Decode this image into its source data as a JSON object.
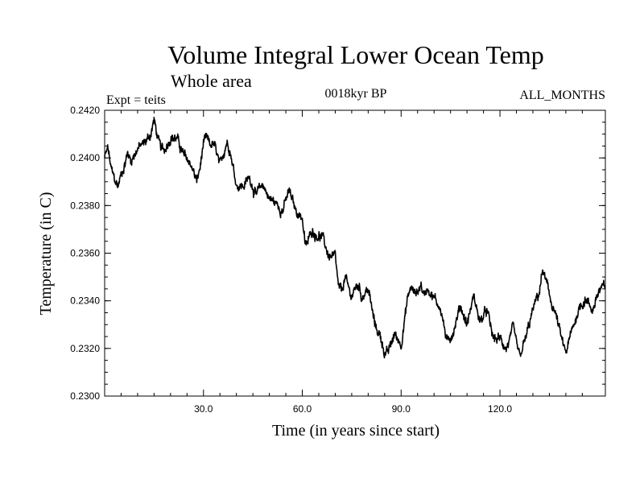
{
  "chart_data": {
    "type": "line",
    "title": "Volume Integral Lower Ocean Temp",
    "subtitle": "Whole area",
    "center_label": "0018kyr BP",
    "right_label": "ALL_MONTHS",
    "left_label": "Expt = teits",
    "xlabel": "Time (in years since start)",
    "ylabel": "Temperature (in C)",
    "xlim": [
      0,
      152
    ],
    "ylim": [
      0.23,
      0.242
    ],
    "xticks": [
      30,
      60,
      90,
      120
    ],
    "xtick_labels": [
      "30.0",
      "60.0",
      "90.0",
      "120.0"
    ],
    "yticks": [
      0.23,
      0.232,
      0.234,
      0.236,
      0.238,
      0.24,
      0.242
    ],
    "ytick_labels": [
      "0.2300",
      "0.2320",
      "0.2340",
      "0.2360",
      "0.2380",
      "0.2400",
      "0.2420"
    ],
    "grid": false,
    "series": [
      {
        "name": "teits",
        "color": "#000000",
        "x": [
          0,
          1,
          2,
          3,
          4,
          5,
          6,
          7,
          8,
          10,
          12,
          14,
          15,
          16,
          17,
          18,
          20,
          22,
          24,
          26,
          28,
          29,
          30,
          31,
          32,
          33,
          34,
          35,
          37,
          38,
          40,
          42,
          44,
          46,
          48,
          50,
          52,
          54,
          56,
          58,
          60,
          61,
          62,
          63,
          64,
          66,
          68,
          70,
          71,
          72,
          73,
          74,
          75,
          76,
          77,
          78,
          80,
          82,
          84,
          85,
          86,
          88,
          90,
          92,
          93,
          94,
          95,
          96,
          97,
          98,
          100,
          102,
          104,
          106,
          108,
          110,
          112,
          114,
          116,
          118,
          120,
          122,
          124,
          126,
          128,
          130,
          132,
          133,
          134,
          135,
          136,
          137,
          138,
          139,
          140,
          142,
          144,
          146,
          148,
          150,
          152
        ],
        "y": [
          0.24,
          0.2404,
          0.2395,
          0.2391,
          0.2388,
          0.2393,
          0.2397,
          0.2402,
          0.2399,
          0.2404,
          0.2406,
          0.241,
          0.2416,
          0.2409,
          0.2404,
          0.2403,
          0.2409,
          0.2408,
          0.2401,
          0.2398,
          0.239,
          0.2396,
          0.2406,
          0.2408,
          0.2405,
          0.2406,
          0.2402,
          0.2396,
          0.2407,
          0.2404,
          0.2389,
          0.2388,
          0.2392,
          0.2384,
          0.2389,
          0.2383,
          0.2381,
          0.2378,
          0.2386,
          0.2378,
          0.2375,
          0.2362,
          0.2366,
          0.237,
          0.2368,
          0.2367,
          0.2359,
          0.2358,
          0.2345,
          0.2344,
          0.235,
          0.2345,
          0.2342,
          0.2345,
          0.2347,
          0.2342,
          0.2345,
          0.233,
          0.2324,
          0.2318,
          0.2318,
          0.2326,
          0.2322,
          0.2341,
          0.2346,
          0.2343,
          0.2344,
          0.2347,
          0.2342,
          0.2346,
          0.2341,
          0.2337,
          0.2322,
          0.2328,
          0.2338,
          0.233,
          0.2342,
          0.2331,
          0.2336,
          0.2324,
          0.2324,
          0.232,
          0.2328,
          0.2316,
          0.2325,
          0.2336,
          0.2344,
          0.2353,
          0.2348,
          0.2342,
          0.2338,
          0.2334,
          0.2328,
          0.2322,
          0.2318,
          0.2328,
          0.2337,
          0.2341,
          0.2336,
          0.2344,
          0.2346
        ]
      }
    ]
  }
}
